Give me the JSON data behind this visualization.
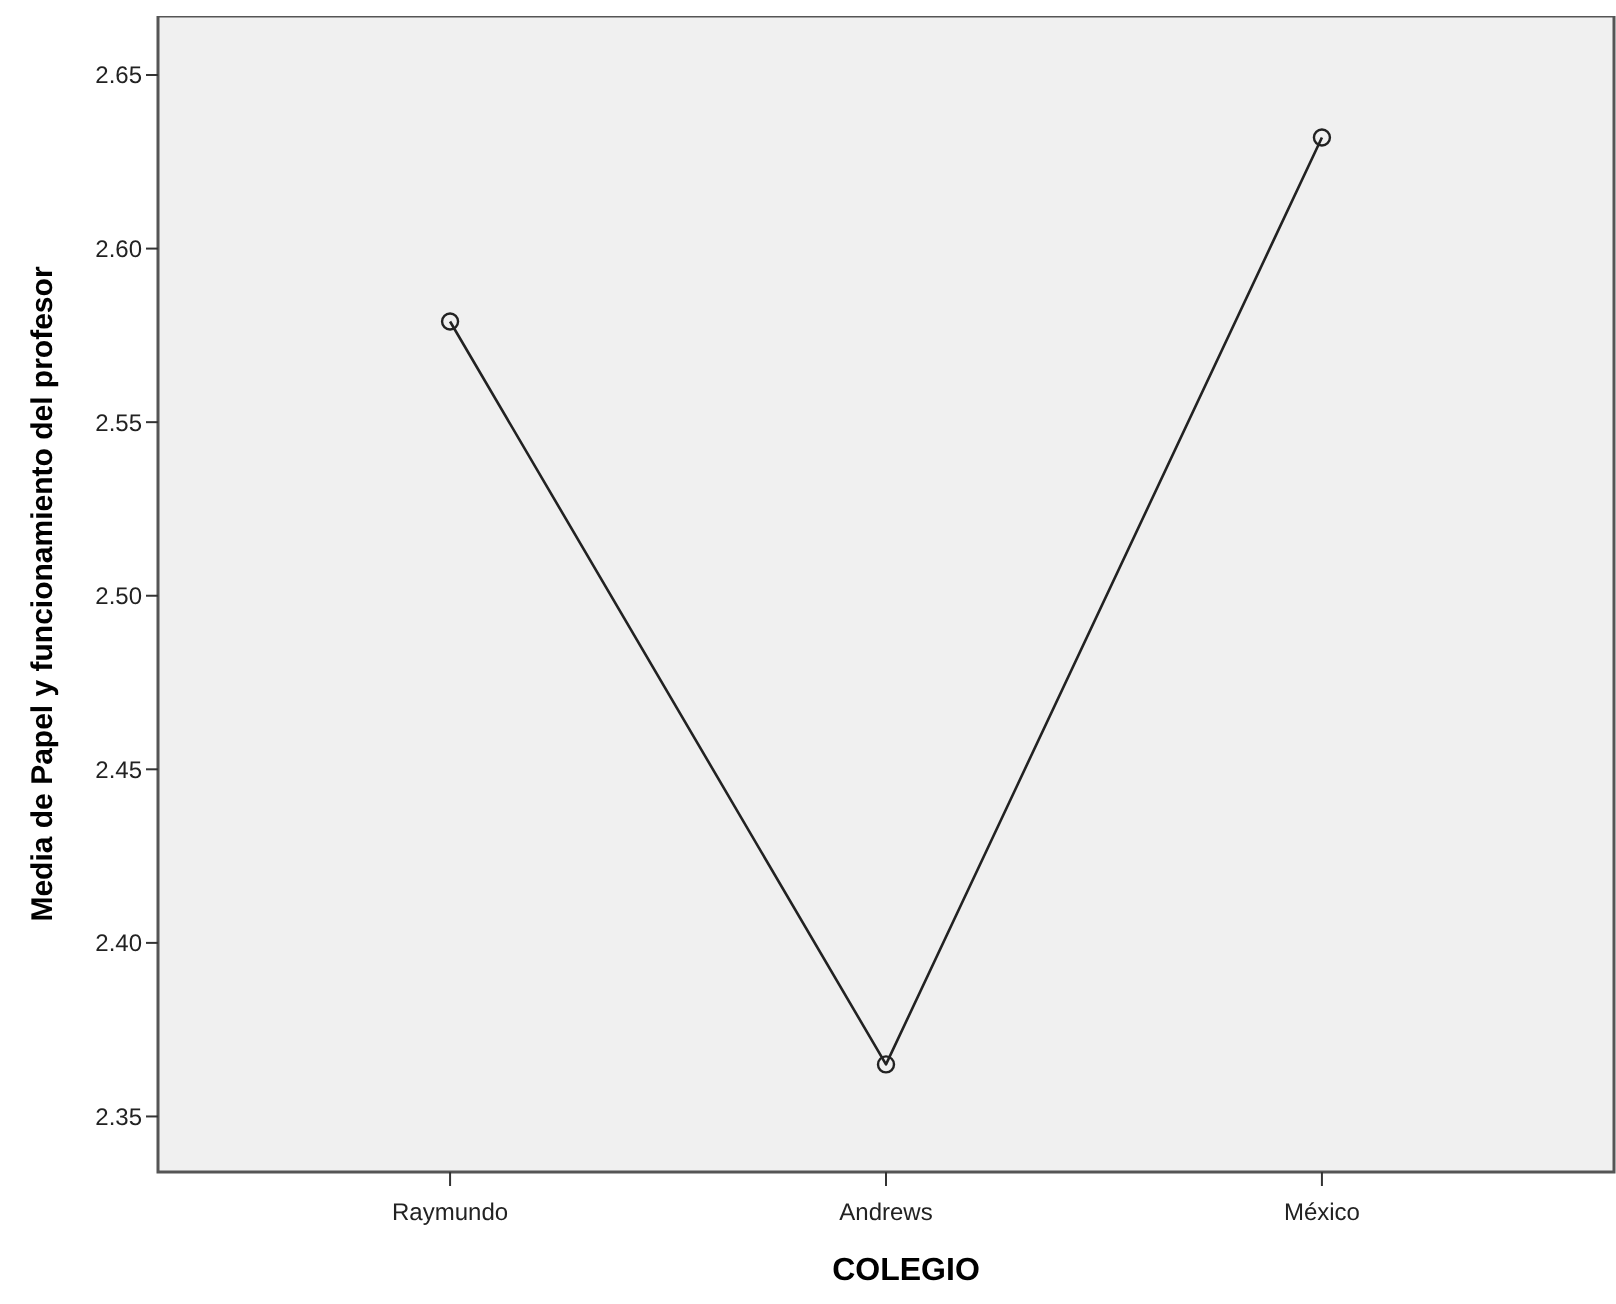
{
  "chart_data": {
    "type": "line",
    "xlabel": "COLEGIO",
    "ylabel": "Media de Papel y funcionamiento del profesor",
    "categories": [
      "Raymundo",
      "Andrews",
      "México"
    ],
    "series": [
      {
        "color": "#222222",
        "values": [
          2.579,
          2.365,
          2.632
        ]
      }
    ],
    "ylim": [
      2.334,
      2.667
    ],
    "yticks": [
      {
        "value": 2.35,
        "label": "2.35"
      },
      {
        "value": 2.4,
        "label": "2.40"
      },
      {
        "value": 2.45,
        "label": "2.45"
      },
      {
        "value": 2.5,
        "label": "2.50"
      },
      {
        "value": 2.55,
        "label": "2.55"
      },
      {
        "value": 2.6,
        "label": "2.60"
      },
      {
        "value": 2.65,
        "label": "2.65"
      }
    ],
    "grid": false,
    "marker": "circle",
    "line_style": "solid"
  }
}
